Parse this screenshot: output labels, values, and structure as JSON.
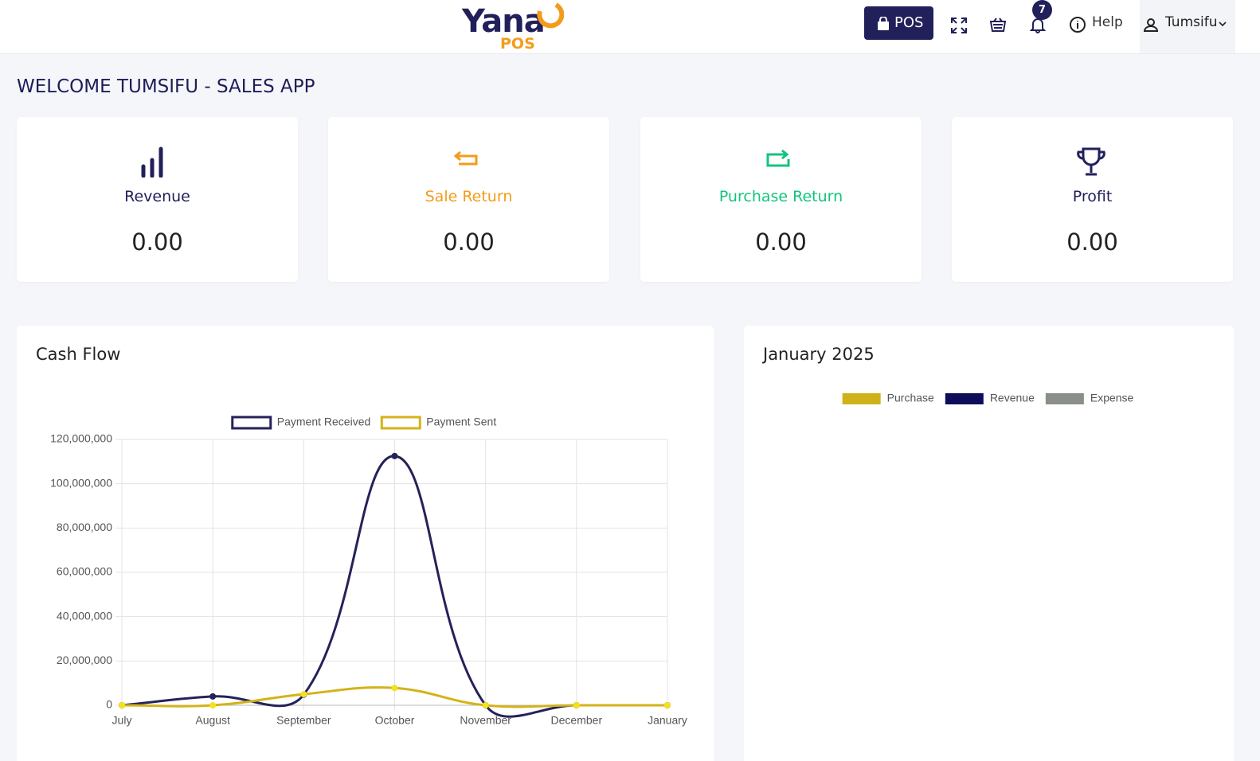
{
  "header": {
    "logo_top": "Yana",
    "logo_bottom": "POS",
    "pos_button": "POS",
    "notification_count": 7,
    "help": "Help",
    "user": "Tumsifu"
  },
  "welcome": "WELCOME TUMSIFU - SALES APP",
  "cards": [
    {
      "label": "Revenue",
      "value": "0.00"
    },
    {
      "label": "Sale Return",
      "value": "0.00"
    },
    {
      "label": "Purchase Return",
      "value": "0.00"
    },
    {
      "label": "Profit",
      "value": "0.00"
    }
  ],
  "chart_data": [
    {
      "type": "line",
      "title": "Cash Flow",
      "categories": [
        "July",
        "August",
        "September",
        "October",
        "November",
        "December",
        "January"
      ],
      "series": [
        {
          "name": "Payment Received",
          "color": "#25225a",
          "values": [
            0,
            4000000,
            4800000,
            112500000,
            0,
            0,
            0
          ]
        },
        {
          "name": "Payment Sent",
          "color": "#d4b31a",
          "values": [
            0,
            0,
            5000000,
            7800000,
            0,
            0,
            0
          ]
        }
      ],
      "ylim": [
        0,
        120000000
      ],
      "yticks": [
        0,
        {
          "value": 20000000,
          "label": "20,000,000"
        },
        {
          "value": 40000000,
          "label": "40,000,000"
        },
        {
          "value": 60000000,
          "label": "60,000,000"
        },
        {
          "value": 80000000,
          "label": "80,000,000"
        },
        {
          "value": 100000000,
          "label": "100,000,000"
        },
        {
          "value": 120000000,
          "label": "120,000,000"
        }
      ],
      "grid": true
    },
    {
      "type": "bar",
      "title": "January 2025",
      "series": [
        {
          "name": "Purchase",
          "color": "#cfb21a"
        },
        {
          "name": "Revenue",
          "color": "#0d0d5a"
        },
        {
          "name": "Expense",
          "color": "#8a8f88"
        }
      ]
    }
  ]
}
